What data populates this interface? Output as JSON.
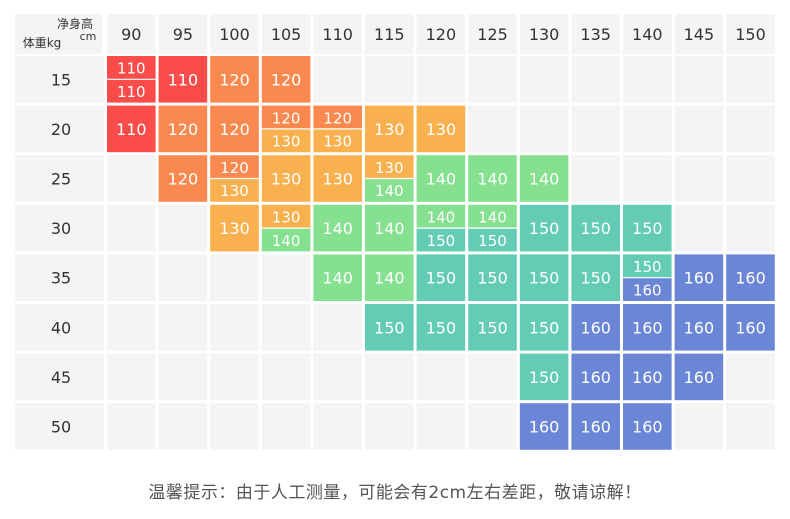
{
  "corner": {
    "height_label": "净身高",
    "height_unit": "cm",
    "weight_label": "体重kg"
  },
  "heights": [
    "90",
    "95",
    "100",
    "105",
    "110",
    "115",
    "120",
    "125",
    "130",
    "135",
    "140",
    "145",
    "150"
  ],
  "weights": [
    "15",
    "20",
    "25",
    "30",
    "35",
    "40",
    "45",
    "50"
  ],
  "size_colors": {
    "110": "#fb4c4c",
    "120": "#f9894e",
    "130": "#f9b04f",
    "140": "#85e18f",
    "150": "#64cbb4",
    "160": "#6b86d6"
  },
  "empty_color": "#f4f4f4",
  "grid": [
    [
      [
        "110",
        "110"
      ],
      [
        "110"
      ],
      [
        "120"
      ],
      [
        "120"
      ],
      [],
      [],
      [],
      [],
      [],
      [],
      [],
      [],
      []
    ],
    [
      [
        "110"
      ],
      [
        "120"
      ],
      [
        "120"
      ],
      [
        "120",
        "130"
      ],
      [
        "120",
        "130"
      ],
      [
        "130"
      ],
      [
        "130"
      ],
      [],
      [],
      [],
      [],
      [],
      []
    ],
    [
      [],
      [
        "120"
      ],
      [
        "120",
        "130"
      ],
      [
        "130"
      ],
      [
        "130"
      ],
      [
        "130",
        "140"
      ],
      [
        "140"
      ],
      [
        "140"
      ],
      [
        "140"
      ],
      [],
      [],
      [],
      []
    ],
    [
      [],
      [],
      [
        "130"
      ],
      [
        "130",
        "140"
      ],
      [
        "140"
      ],
      [
        "140"
      ],
      [
        "140",
        "150"
      ],
      [
        "140",
        "150"
      ],
      [
        "150"
      ],
      [
        "150"
      ],
      [
        "150"
      ],
      [],
      []
    ],
    [
      [],
      [],
      [],
      [],
      [
        "140"
      ],
      [
        "140"
      ],
      [
        "150"
      ],
      [
        "150"
      ],
      [
        "150"
      ],
      [
        "150"
      ],
      [
        "150",
        "160"
      ],
      [
        "160"
      ],
      [
        "160"
      ]
    ],
    [
      [],
      [],
      [],
      [],
      [],
      [
        "150"
      ],
      [
        "150"
      ],
      [
        "150"
      ],
      [
        "150"
      ],
      [
        "160"
      ],
      [
        "160"
      ],
      [
        "160"
      ],
      [
        "160"
      ]
    ],
    [
      [],
      [],
      [],
      [],
      [],
      [],
      [],
      [],
      [
        "150"
      ],
      [
        "160"
      ],
      [
        "160"
      ],
      [
        "160"
      ],
      []
    ],
    [
      [],
      [],
      [],
      [],
      [],
      [],
      [],
      [],
      [
        "160"
      ],
      [
        "160"
      ],
      [
        "160"
      ],
      [],
      []
    ]
  ],
  "footer_tip": "温馨提示：由于人工测量，可能会有2cm左右差距，敬请谅解！"
}
